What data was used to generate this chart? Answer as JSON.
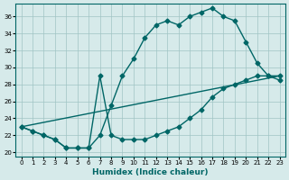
{
  "xlabel": "Humidex (Indice chaleur)",
  "ylabel": "",
  "bg_color": "#d6eaea",
  "grid_color": "#a0c4c4",
  "line_color": "#006666",
  "xlim": [
    -0.5,
    23.5
  ],
  "ylim": [
    19.5,
    37.5
  ],
  "yticks": [
    20,
    22,
    24,
    26,
    28,
    30,
    32,
    34,
    36
  ],
  "xticks": [
    0,
    1,
    2,
    3,
    4,
    5,
    6,
    7,
    8,
    9,
    10,
    11,
    12,
    13,
    14,
    15,
    16,
    17,
    18,
    19,
    20,
    21,
    22,
    23
  ],
  "line1_x": [
    0,
    1,
    2,
    3,
    4,
    5,
    6,
    7,
    8,
    9,
    10,
    11,
    12,
    13,
    14,
    15,
    16,
    17,
    18,
    19,
    20,
    21,
    22,
    23
  ],
  "line1_y": [
    23,
    22.5,
    22,
    21.5,
    20.5,
    20.5,
    20.5,
    22,
    25.5,
    29,
    31,
    33.5,
    35,
    35.5,
    35,
    36,
    36.5,
    37,
    36,
    35.5,
    33,
    30.5,
    29,
    28.5
  ],
  "line2_x": [
    0,
    1,
    2,
    3,
    4,
    5,
    6,
    7,
    8,
    9,
    10,
    11,
    12,
    13,
    14,
    15,
    16,
    17,
    18,
    19,
    20,
    21,
    22,
    23
  ],
  "line2_y": [
    23,
    22.5,
    22,
    21.5,
    20.5,
    20.5,
    20.5,
    29,
    22,
    21.5,
    21.5,
    21.5,
    22,
    22.5,
    23,
    24,
    25,
    26.5,
    27.5,
    28,
    28.5,
    29,
    29,
    29
  ],
  "line3_x": [
    0,
    23
  ],
  "line3_y": [
    23,
    29
  ]
}
